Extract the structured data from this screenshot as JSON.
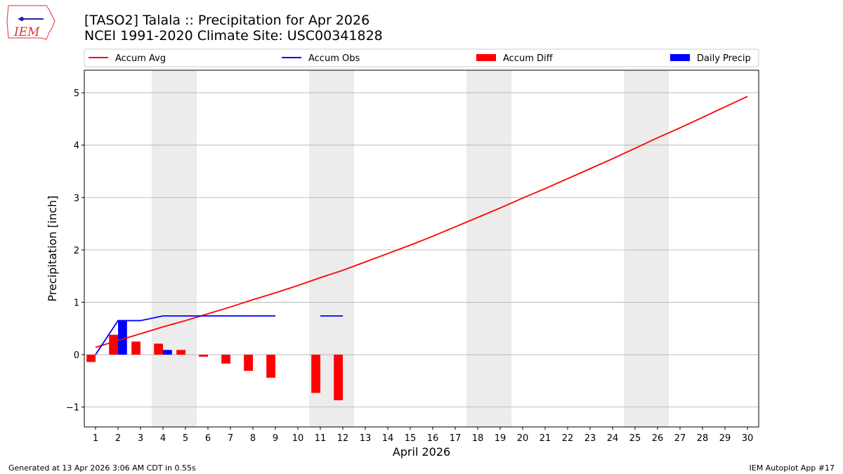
{
  "logo_text": "IEM",
  "chart_data": {
    "type": "bar-line",
    "title": "[TASO2] Talala :: Precipitation for Apr 2026",
    "subtitle": "NCEI 1991-2020 Climate Site: USC00341828",
    "xlabel": "April 2026",
    "ylabel": "Precipitation [inch]",
    "footer_left": "Generated at 13 Apr 2026 3:06 AM CDT in 0.55s",
    "footer_right": "IEM Autoplot App #17",
    "x": [
      1,
      2,
      3,
      4,
      5,
      6,
      7,
      8,
      9,
      10,
      11,
      12,
      13,
      14,
      15,
      16,
      17,
      18,
      19,
      20,
      21,
      22,
      23,
      24,
      25,
      26,
      27,
      28,
      29,
      30
    ],
    "xlim": [
      0.5,
      30.5
    ],
    "xticks": [
      1,
      2,
      3,
      4,
      5,
      6,
      7,
      8,
      9,
      10,
      11,
      12,
      13,
      14,
      15,
      16,
      17,
      18,
      19,
      20,
      21,
      22,
      23,
      24,
      25,
      26,
      27,
      28,
      29,
      30
    ],
    "ylim": [
      -1.38,
      5.43
    ],
    "yticks": [
      {
        "value": -1,
        "label": "−1"
      },
      0,
      1,
      2,
      3,
      4,
      5
    ],
    "grid": true,
    "weekend_spans": [
      [
        3.5,
        5.5
      ],
      [
        10.5,
        12.5
      ],
      [
        17.5,
        19.5
      ],
      [
        24.5,
        26.5
      ]
    ],
    "series": [
      {
        "name": "Accum Avg",
        "kind": "line",
        "color": "#ff0000",
        "values": [
          0.14,
          0.27,
          0.4,
          0.53,
          0.65,
          0.78,
          0.91,
          1.05,
          1.18,
          1.32,
          1.47,
          1.61,
          1.77,
          1.93,
          2.09,
          2.26,
          2.44,
          2.62,
          2.8,
          2.99,
          3.17,
          3.36,
          3.55,
          3.74,
          3.94,
          4.14,
          4.33,
          4.53,
          4.73,
          4.93
        ]
      },
      {
        "name": "Accum Obs",
        "kind": "line",
        "color": "#0000ff",
        "values": [
          0,
          0.65,
          0.65,
          0.74,
          0.74,
          0.74,
          0.74,
          0.74,
          0.74,
          null,
          0.74,
          0.74,
          null,
          null,
          null,
          null,
          null,
          null,
          null,
          null,
          null,
          null,
          null,
          null,
          null,
          null,
          null,
          null,
          null,
          null
        ]
      },
      {
        "name": "Accum Diff",
        "kind": "bar",
        "offset": -0.4,
        "color": "#ff0000",
        "values": [
          -0.14,
          0.38,
          0.25,
          0.21,
          0.09,
          -0.04,
          -0.17,
          -0.31,
          -0.44,
          null,
          -0.73,
          -0.87,
          null,
          null,
          null,
          null,
          null,
          null,
          null,
          null,
          null,
          null,
          null,
          null,
          null,
          null,
          null,
          null,
          null,
          null
        ]
      },
      {
        "name": "Daily Precip",
        "kind": "bar",
        "offset": 0,
        "color": "#0000ff",
        "values": [
          0,
          0.65,
          0,
          0.09,
          0,
          0,
          0,
          0,
          0,
          null,
          0,
          0,
          null,
          null,
          null,
          null,
          null,
          null,
          null,
          null,
          null,
          null,
          null,
          null,
          null,
          null,
          null,
          null,
          null,
          null
        ]
      }
    ]
  }
}
